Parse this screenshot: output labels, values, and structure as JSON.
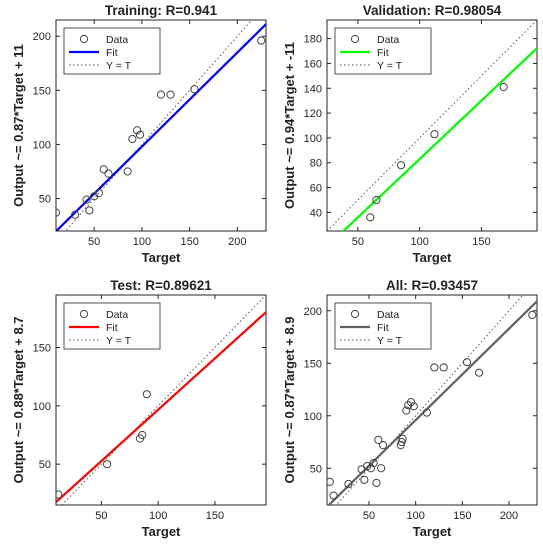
{
  "chart_data": [
    {
      "type": "scatter",
      "title": "Training: R=0.941",
      "xlabel": "Target",
      "ylabel": "Output ~= 0.87*Target + 11",
      "xlim": [
        10,
        230
      ],
      "ylim": [
        20,
        215
      ],
      "xticks": [
        50,
        100,
        150,
        200
      ],
      "yticks": [
        50,
        100,
        150,
        200
      ],
      "fit_color": "#0000ff",
      "fit": {
        "slope": 0.87,
        "intercept": 11
      },
      "legend": [
        "Data",
        "Fit",
        "Y = T"
      ],
      "legend_position": "top-left",
      "grid": false,
      "points": [
        [
          10,
          37
        ],
        [
          30,
          35
        ],
        [
          42,
          49
        ],
        [
          45,
          39
        ],
        [
          50,
          52
        ],
        [
          55,
          55
        ],
        [
          60,
          77
        ],
        [
          65,
          73
        ],
        [
          85,
          75
        ],
        [
          90,
          105
        ],
        [
          95,
          113
        ],
        [
          98,
          109
        ],
        [
          120,
          146
        ],
        [
          130,
          146
        ],
        [
          155,
          151
        ],
        [
          225,
          196
        ]
      ]
    },
    {
      "type": "scatter",
      "title": "Validation: R=0.98054",
      "xlabel": "Target",
      "ylabel": "Output ~= 0.94*Target + -11",
      "xlim": [
        25,
        195
      ],
      "ylim": [
        25,
        195
      ],
      "xticks": [
        50,
        100,
        150
      ],
      "yticks": [
        40,
        60,
        80,
        100,
        120,
        140,
        160,
        180
      ],
      "fit_color": "#00ff00",
      "fit": {
        "slope": 0.94,
        "intercept": -11
      },
      "legend": [
        "Data",
        "Fit",
        "Y = T"
      ],
      "legend_position": "top-left",
      "grid": false,
      "points": [
        [
          60,
          36
        ],
        [
          65,
          50
        ],
        [
          85,
          78
        ],
        [
          112,
          103
        ],
        [
          168,
          141
        ]
      ]
    },
    {
      "type": "scatter",
      "title": "Test: R=0.89621",
      "xlabel": "Target",
      "ylabel": "Output ~= 0.88*Target + 8.7",
      "xlim": [
        10,
        195
      ],
      "ylim": [
        15,
        195
      ],
      "xticks": [
        50,
        100,
        150
      ],
      "yticks": [
        50,
        100,
        150
      ],
      "fit_color": "#ff0000",
      "fit": {
        "slope": 0.88,
        "intercept": 8.7
      },
      "legend": [
        "Data",
        "Fit",
        "Y = T"
      ],
      "legend_position": "top-left",
      "grid": false,
      "points": [
        [
          12,
          24
        ],
        [
          55,
          50
        ],
        [
          84,
          72
        ],
        [
          86,
          75
        ],
        [
          90,
          110
        ]
      ]
    },
    {
      "type": "scatter",
      "title": "All: R=0.93457",
      "xlabel": "Target",
      "ylabel": "Output ~= 0.87*Target + 8.9",
      "xlim": [
        5,
        230
      ],
      "ylim": [
        15,
        215
      ],
      "xticks": [
        50,
        100,
        150,
        200
      ],
      "yticks": [
        50,
        100,
        150,
        200
      ],
      "fit_color": "#606060",
      "fit": {
        "slope": 0.87,
        "intercept": 8.9
      },
      "legend": [
        "Data",
        "Fit",
        "Y = T"
      ],
      "legend_position": "top-left",
      "grid": false,
      "points": [
        [
          8,
          37
        ],
        [
          12,
          24
        ],
        [
          28,
          35
        ],
        [
          42,
          49
        ],
        [
          45,
          39
        ],
        [
          48,
          52
        ],
        [
          52,
          50
        ],
        [
          55,
          55
        ],
        [
          58,
          36
        ],
        [
          60,
          77
        ],
        [
          63,
          50
        ],
        [
          65,
          72
        ],
        [
          84,
          72
        ],
        [
          85,
          75
        ],
        [
          86,
          78
        ],
        [
          90,
          105
        ],
        [
          92,
          110
        ],
        [
          95,
          113
        ],
        [
          98,
          109
        ],
        [
          112,
          103
        ],
        [
          120,
          146
        ],
        [
          130,
          146
        ],
        [
          155,
          151
        ],
        [
          168,
          141
        ],
        [
          225,
          196
        ]
      ]
    }
  ]
}
